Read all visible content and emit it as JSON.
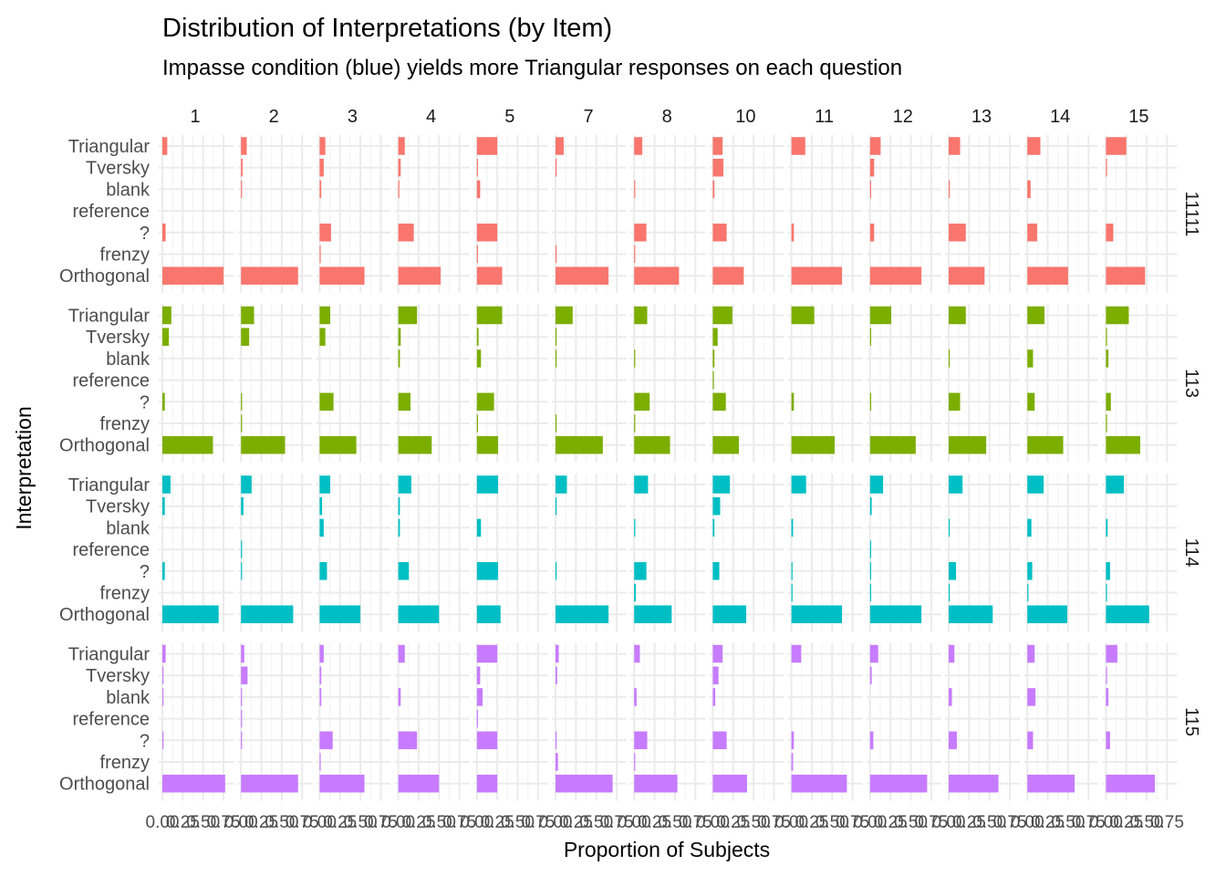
{
  "chart_data": {
    "type": "bar",
    "title": "Distribution of Interpretations (by Item)",
    "subtitle": "Impasse condition (blue) yields more Triangular responses on each question",
    "xlabel": "Proportion of Subjects",
    "ylabel": "Interpretation",
    "xlim": [
      0,
      0.85
    ],
    "x_ticks": [
      "0.00",
      "0.25",
      "0.50",
      "0.75"
    ],
    "x_tick_values": [
      0,
      0.25,
      0.5,
      0.75
    ],
    "grid": true,
    "legend": "none",
    "columns": [
      "1",
      "2",
      "3",
      "4",
      "5",
      "7",
      "8",
      "10",
      "11",
      "12",
      "13",
      "14",
      "15"
    ],
    "categories": [
      "Triangular",
      "Tversky",
      "blank",
      "reference",
      "?",
      "frenzy",
      "Orthogonal"
    ],
    "rows": [
      {
        "name": "11111",
        "color": "#F8766D",
        "values": [
          [
            0.06,
            0.0,
            0.0,
            0.0,
            0.04,
            0.0,
            0.75
          ],
          [
            0.07,
            0.02,
            0.01,
            0.0,
            0.0,
            0.0,
            0.7
          ],
          [
            0.07,
            0.05,
            0.02,
            0.0,
            0.14,
            0.01,
            0.55
          ],
          [
            0.08,
            0.03,
            0.01,
            0.0,
            0.19,
            0.0,
            0.52
          ],
          [
            0.25,
            0.01,
            0.04,
            0.0,
            0.25,
            0.01,
            0.31
          ],
          [
            0.1,
            0.01,
            0.0,
            0.0,
            0.0,
            0.01,
            0.65
          ],
          [
            0.1,
            0.0,
            0.01,
            0.0,
            0.15,
            0.01,
            0.55
          ],
          [
            0.12,
            0.13,
            0.02,
            0.0,
            0.17,
            0.0,
            0.38
          ],
          [
            0.17,
            0.0,
            0.0,
            0.0,
            0.03,
            0.0,
            0.62
          ],
          [
            0.13,
            0.05,
            0.01,
            0.0,
            0.05,
            0.0,
            0.63
          ],
          [
            0.14,
            0.0,
            0.01,
            0.0,
            0.21,
            0.0,
            0.44
          ],
          [
            0.16,
            0.0,
            0.04,
            0.0,
            0.12,
            0.0,
            0.5
          ],
          [
            0.25,
            0.01,
            0.0,
            0.0,
            0.09,
            0.0,
            0.48
          ]
        ]
      },
      {
        "name": "113",
        "color": "#7CAE00",
        "values": [
          [
            0.11,
            0.08,
            0.0,
            0.0,
            0.03,
            0.0,
            0.62
          ],
          [
            0.16,
            0.1,
            0.0,
            0.0,
            0.01,
            0.01,
            0.54
          ],
          [
            0.13,
            0.07,
            0.0,
            0.0,
            0.17,
            0.0,
            0.45
          ],
          [
            0.23,
            0.03,
            0.02,
            0.0,
            0.15,
            0.0,
            0.41
          ],
          [
            0.31,
            0.02,
            0.05,
            0.0,
            0.21,
            0.01,
            0.26
          ],
          [
            0.21,
            0.01,
            0.01,
            0.0,
            0.0,
            0.01,
            0.58
          ],
          [
            0.16,
            0.0,
            0.01,
            0.0,
            0.19,
            0.01,
            0.44
          ],
          [
            0.24,
            0.06,
            0.02,
            0.01,
            0.16,
            0.0,
            0.32
          ],
          [
            0.28,
            0.0,
            0.0,
            0.0,
            0.03,
            0.0,
            0.53
          ],
          [
            0.26,
            0.01,
            0.0,
            0.0,
            0.01,
            0.0,
            0.56
          ],
          [
            0.21,
            0.0,
            0.01,
            0.0,
            0.14,
            0.0,
            0.46
          ],
          [
            0.21,
            0.0,
            0.07,
            0.0,
            0.09,
            0.0,
            0.44
          ],
          [
            0.28,
            0.01,
            0.03,
            0.0,
            0.06,
            0.01,
            0.42
          ]
        ]
      },
      {
        "name": "114",
        "color": "#00BFC4",
        "values": [
          [
            0.1,
            0.03,
            0.0,
            0.0,
            0.03,
            0.0,
            0.69
          ],
          [
            0.13,
            0.03,
            0.0,
            0.01,
            0.01,
            0.0,
            0.64
          ],
          [
            0.13,
            0.03,
            0.05,
            0.0,
            0.09,
            0.0,
            0.5
          ],
          [
            0.16,
            0.02,
            0.02,
            0.0,
            0.13,
            0.0,
            0.5
          ],
          [
            0.26,
            0.0,
            0.05,
            0.0,
            0.26,
            0.0,
            0.29
          ],
          [
            0.14,
            0.01,
            0.0,
            0.0,
            0.01,
            0.0,
            0.65
          ],
          [
            0.17,
            0.0,
            0.01,
            0.0,
            0.15,
            0.02,
            0.46
          ],
          [
            0.21,
            0.09,
            0.02,
            0.0,
            0.08,
            0.0,
            0.41
          ],
          [
            0.18,
            0.0,
            0.02,
            0.0,
            0.01,
            0.01,
            0.62
          ],
          [
            0.16,
            0.02,
            0.0,
            0.01,
            0.01,
            0.01,
            0.63
          ],
          [
            0.17,
            0.0,
            0.01,
            0.0,
            0.09,
            0.01,
            0.54
          ],
          [
            0.2,
            0.0,
            0.05,
            0.0,
            0.06,
            0.01,
            0.49
          ],
          [
            0.22,
            0.0,
            0.02,
            0.0,
            0.05,
            0.01,
            0.53
          ]
        ]
      },
      {
        "name": "115",
        "color": "#C77CFF",
        "values": [
          [
            0.04,
            0.01,
            0.01,
            0.0,
            0.01,
            0.0,
            0.77
          ],
          [
            0.04,
            0.08,
            0.01,
            0.01,
            0.01,
            0.0,
            0.7
          ],
          [
            0.05,
            0.02,
            0.02,
            0.0,
            0.16,
            0.01,
            0.55
          ],
          [
            0.08,
            0.0,
            0.03,
            0.0,
            0.23,
            0.0,
            0.5
          ],
          [
            0.25,
            0.04,
            0.07,
            0.01,
            0.25,
            0.0,
            0.25
          ],
          [
            0.04,
            0.02,
            0.0,
            0.0,
            0.01,
            0.03,
            0.7
          ],
          [
            0.07,
            0.0,
            0.03,
            0.0,
            0.16,
            0.01,
            0.53
          ],
          [
            0.12,
            0.07,
            0.03,
            0.0,
            0.17,
            0.0,
            0.42
          ],
          [
            0.12,
            0.0,
            0.0,
            0.0,
            0.03,
            0.02,
            0.68
          ],
          [
            0.1,
            0.02,
            0.0,
            0.0,
            0.04,
            0.0,
            0.7
          ],
          [
            0.07,
            0.0,
            0.04,
            0.0,
            0.1,
            0.0,
            0.61
          ],
          [
            0.09,
            0.0,
            0.1,
            0.0,
            0.07,
            0.0,
            0.58
          ],
          [
            0.14,
            0.01,
            0.03,
            0.0,
            0.05,
            0.0,
            0.6
          ]
        ]
      }
    ]
  }
}
